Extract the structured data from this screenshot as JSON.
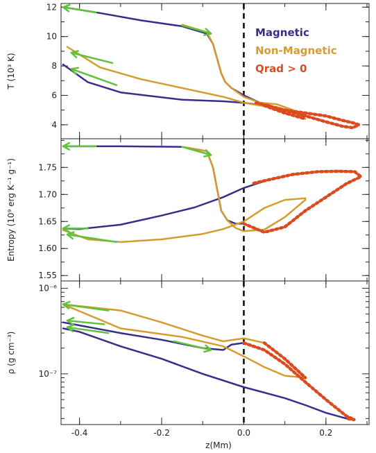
{
  "chart_data": {
    "type": "line",
    "xlabel": "z(Mm)",
    "x_ticks": [
      "-0.4",
      "-0.2",
      "0.0",
      "0.2"
    ],
    "x_tick_values": [
      -0.4,
      -0.2,
      0.0,
      0.2
    ],
    "xlim": [
      -0.445,
      0.305
    ],
    "vertical_dashed_line_at_x": 0.0,
    "legend": {
      "placement": "top-right",
      "entries": [
        {
          "label": "Magnetic",
          "color": "#372d8c"
        },
        {
          "label": "Non-Magnetic",
          "color": "#d79b2d"
        },
        {
          "label": "Qrad > 0",
          "color": "#dc4b1e"
        }
      ]
    },
    "colors": {
      "magnetic": "#372d8c",
      "non_magnetic": "#d79b2d",
      "qrad": "#dc4b1e",
      "arrow": "#5fc13c"
    },
    "panels": [
      {
        "id": "temperature",
        "ylabel": "T (10³ K)",
        "ylim": [
          3.05,
          12.25
        ],
        "scale": "linear",
        "y_ticks": [
          "4",
          "6",
          "8",
          "10",
          "12"
        ],
        "y_tick_values": [
          4,
          6,
          8,
          10,
          12
        ],
        "series": [
          {
            "name": "Magnetic",
            "color_key": "magnetic",
            "x": [
              -0.44,
              -0.35,
              -0.25,
              -0.15,
              -0.09,
              -0.075,
              -0.065,
              -0.055,
              -0.045,
              -0.03,
              0.0,
              0.04,
              0.1,
              0.15,
              0.2,
              0.24,
              0.265,
              0.28,
              0.27,
              0.24,
              0.2,
              0.15,
              0.1,
              0.05,
              0.0,
              -0.05,
              -0.15,
              -0.3,
              -0.38,
              -0.44
            ],
            "y": [
              12.0,
              11.6,
              11.1,
              10.7,
              10.2,
              9.5,
              8.5,
              7.5,
              6.9,
              6.5,
              6.0,
              5.5,
              5.0,
              4.6,
              4.2,
              3.9,
              3.8,
              4.0,
              4.1,
              4.3,
              4.6,
              4.8,
              5.0,
              5.3,
              5.5,
              5.6,
              5.7,
              6.2,
              6.9,
              8.1
            ]
          },
          {
            "name": "Non-Magnetic",
            "color_key": "non_magnetic",
            "x": [
              -0.15,
              -0.09,
              -0.075,
              -0.065,
              -0.055,
              -0.045,
              -0.03,
              0.0,
              0.04,
              0.08,
              0.12,
              0.15,
              0.12,
              0.08,
              0.04,
              0.0,
              -0.05,
              -0.15,
              -0.25,
              -0.35,
              -0.43
            ],
            "y": [
              10.8,
              10.3,
              9.5,
              8.5,
              7.5,
              6.9,
              6.5,
              5.9,
              5.5,
              5.4,
              5.0,
              4.4,
              4.9,
              5.2,
              5.3,
              5.5,
              5.9,
              6.5,
              7.1,
              7.9,
              9.3
            ]
          }
        ],
        "qrad_segments": [
          {
            "x": [
              0.03,
              0.1,
              0.15,
              0.2,
              0.24,
              0.265,
              0.28,
              0.27,
              0.24,
              0.2,
              0.15,
              0.1
            ],
            "y": [
              5.5,
              5.0,
              4.6,
              4.2,
              3.9,
              3.8,
              4.0,
              4.1,
              4.3,
              4.6,
              4.8,
              5.0
            ]
          },
          {
            "x": [
              0.05,
              0.1,
              0.15
            ],
            "y": [
              5.3,
              4.8,
              4.4
            ]
          }
        ],
        "arrows": [
          {
            "x1": -0.36,
            "y1": 11.65,
            "x2": -0.44,
            "y2": 12.0
          },
          {
            "x1": -0.15,
            "y1": 10.75,
            "x2": -0.08,
            "y2": 10.2
          },
          {
            "x1": -0.32,
            "y1": 8.2,
            "x2": -0.42,
            "y2": 8.9
          },
          {
            "x1": -0.31,
            "y1": 6.7,
            "x2": -0.42,
            "y2": 7.8
          }
        ]
      },
      {
        "id": "entropy",
        "ylabel": "Entropy (10⁹ erg K⁻¹ g⁻¹)",
        "ylim": [
          1.54,
          1.803
        ],
        "scale": "linear",
        "y_ticks": [
          "1.55",
          "1.60",
          "1.65",
          "1.70",
          "1.75"
        ],
        "y_tick_values": [
          1.55,
          1.6,
          1.65,
          1.7,
          1.75
        ],
        "series": [
          {
            "name": "Magnetic",
            "color_key": "magnetic",
            "x": [
              -0.44,
              -0.3,
              -0.15,
              -0.09,
              -0.075,
              -0.065,
              -0.055,
              -0.04,
              -0.02,
              0.0,
              0.05,
              0.1,
              0.15,
              0.2,
              0.25,
              0.285,
              0.27,
              0.23,
              0.18,
              0.12,
              0.06,
              0.0,
              -0.05,
              -0.12,
              -0.2,
              -0.3,
              -0.4,
              -0.44
            ],
            "y": [
              1.789,
              1.789,
              1.788,
              1.78,
              1.75,
              1.71,
              1.67,
              1.652,
              1.646,
              1.646,
              1.63,
              1.64,
              1.67,
              1.695,
              1.72,
              1.733,
              1.742,
              1.743,
              1.742,
              1.737,
              1.727,
              1.712,
              1.695,
              1.676,
              1.661,
              1.644,
              1.636,
              1.637
            ]
          },
          {
            "name": "Non-Magnetic",
            "color_key": "non_magnetic",
            "x": [
              -0.15,
              -0.09,
              -0.075,
              -0.065,
              -0.055,
              -0.04,
              -0.02,
              0.0,
              0.05,
              0.1,
              0.15,
              0.15,
              0.1,
              0.05,
              0.0,
              -0.05,
              -0.1,
              -0.2,
              -0.3,
              -0.38,
              -0.44
            ],
            "y": [
              1.788,
              1.78,
              1.75,
              1.71,
              1.67,
              1.652,
              1.638,
              1.632,
              1.635,
              1.658,
              1.69,
              1.693,
              1.69,
              1.675,
              1.65,
              1.636,
              1.627,
              1.617,
              1.612,
              1.617,
              1.634
            ]
          }
        ],
        "qrad_segments": [
          {
            "x": [
              0.0,
              0.05,
              0.1,
              0.15,
              0.2,
              0.25,
              0.285,
              0.27,
              0.23,
              0.18,
              0.12,
              0.06,
              0.02
            ],
            "y": [
              1.646,
              1.63,
              1.64,
              1.67,
              1.695,
              1.72,
              1.733,
              1.742,
              1.743,
              1.742,
              1.737,
              1.727,
              1.72
            ]
          }
        ],
        "arrows": [
          {
            "x1": -0.36,
            "y1": 1.789,
            "x2": -0.44,
            "y2": 1.789
          },
          {
            "x1": -0.15,
            "y1": 1.788,
            "x2": -0.08,
            "y2": 1.773
          },
          {
            "x1": -0.38,
            "y1": 1.637,
            "x2": -0.44,
            "y2": 1.637
          },
          {
            "x1": -0.31,
            "y1": 1.612,
            "x2": -0.43,
            "y2": 1.626
          }
        ]
      },
      {
        "id": "density",
        "ylabel": "ρ (g cm⁻³)",
        "ylim": [
          2.55e-08,
          1.22e-06
        ],
        "scale": "log",
        "y_ticks": [
          "10⁻⁶",
          "10⁻⁷"
        ],
        "y_tick_values": [
          1e-06,
          1e-07
        ],
        "series": [
          {
            "name": "Magnetic",
            "color_key": "magnetic",
            "x": [
              -0.44,
              -0.3,
              -0.2,
              -0.1,
              -0.05,
              -0.03,
              0.0,
              0.05,
              0.1,
              0.15,
              0.2,
              0.25,
              0.27,
              0.25,
              0.2,
              0.15,
              0.1,
              0.0,
              -0.1,
              -0.2,
              -0.3,
              -0.4,
              -0.44
            ],
            "y": [
              4e-07,
              3e-07,
              2.5e-07,
              2e-07,
              1.9e-07,
              2.2e-07,
              2.3e-07,
              1.9e-07,
              1.3e-07,
              8e-08,
              5e-08,
              3.2e-08,
              2.9e-08,
              3e-08,
              3.5e-08,
              4.3e-08,
              5.2e-08,
              7e-08,
              1e-07,
              1.5e-07,
              2.1e-07,
              3.1e-07,
              3.4e-07
            ]
          },
          {
            "name": "Non-Magnetic",
            "color_key": "non_magnetic",
            "x": [
              -0.44,
              -0.3,
              -0.2,
              -0.1,
              -0.05,
              0.0,
              0.05,
              0.1,
              0.15,
              0.1,
              0.05,
              0.0,
              -0.05,
              -0.15,
              -0.3,
              -0.44
            ],
            "y": [
              6.5e-07,
              5.5e-07,
              4e-07,
              2.8e-07,
              2.4e-07,
              2.6e-07,
              2.3e-07,
              1.5e-07,
              9e-08,
              9.5e-08,
              1.2e-07,
              1.6e-07,
              2.1e-07,
              2.7e-07,
              3.4e-07,
              6.5e-07
            ]
          }
        ],
        "qrad_segments": [
          {
            "x": [
              0.0,
              0.05,
              0.1,
              0.15,
              0.2,
              0.25,
              0.27,
              0.25
            ],
            "y": [
              2.3e-07,
              1.9e-07,
              1.3e-07,
              8e-08,
              5e-08,
              3.2e-08,
              2.9e-08,
              3e-08
            ]
          },
          {
            "x": [
              0.05,
              0.1,
              0.15
            ],
            "y": [
              2.3e-07,
              1.5e-07,
              9e-08
            ]
          }
        ],
        "arrows": [
          {
            "x1": -0.33,
            "y1": 5.5e-07,
            "x2": -0.44,
            "y2": 6.5e-07
          },
          {
            "x1": -0.17,
            "y1": 2.4e-07,
            "x2": -0.08,
            "y2": 1.9e-07
          },
          {
            "x1": -0.34,
            "y1": 3.8e-07,
            "x2": -0.43,
            "y2": 4.2e-07
          },
          {
            "x1": -0.33,
            "y1": 3e-07,
            "x2": -0.43,
            "y2": 3.5e-07
          }
        ]
      }
    ]
  }
}
